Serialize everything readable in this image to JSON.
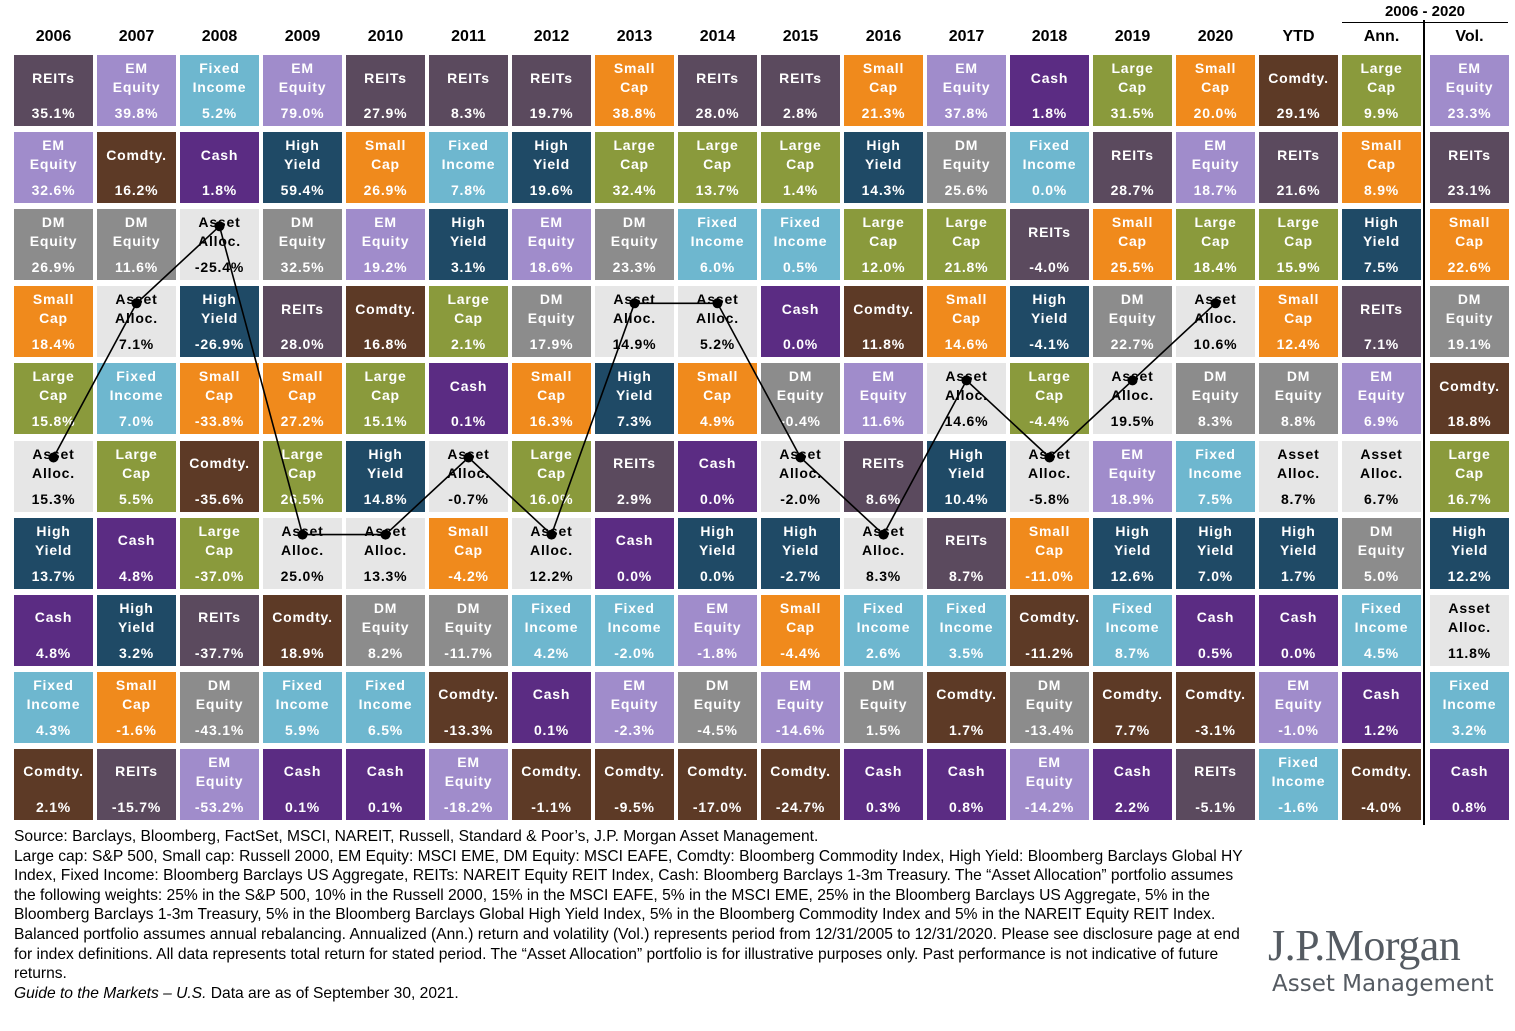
{
  "chart_data": {
    "type": "table",
    "title": "",
    "years": [
      "2006",
      "2007",
      "2008",
      "2009",
      "2010",
      "2011",
      "2012",
      "2013",
      "2014",
      "2015",
      "2016",
      "2017",
      "2018",
      "2019",
      "2020",
      "YTD"
    ],
    "summary_header": "2006 - 2020",
    "summary_columns": [
      "Ann.",
      "Vol."
    ],
    "asset_colors": {
      "REITs": "#5b4a5e",
      "EM Equity": "#a08ccb",
      "Fixed Income": "#6eb7cf",
      "Small Cap": "#f08a1c",
      "Cash": "#5b2c83",
      "Large Cap": "#8a9a3c",
      "Comdty.": "#5d3a26",
      "High Yield": "#1f4a66",
      "DM Equity": "#8c8c8c",
      "Asset Alloc.": "#e6e6e6"
    },
    "columns": [
      [
        [
          "REITs",
          "35.1%"
        ],
        [
          "EM Equity",
          "32.6%"
        ],
        [
          "DM Equity",
          "26.9%"
        ],
        [
          "Small Cap",
          "18.4%"
        ],
        [
          "Large Cap",
          "15.8%"
        ],
        [
          "Asset Alloc.",
          "15.3%"
        ],
        [
          "High Yield",
          "13.7%"
        ],
        [
          "Cash",
          "4.8%"
        ],
        [
          "Fixed Income",
          "4.3%"
        ],
        [
          "Comdty.",
          "2.1%"
        ]
      ],
      [
        [
          "EM Equity",
          "39.8%"
        ],
        [
          "Comdty.",
          "16.2%"
        ],
        [
          "DM Equity",
          "11.6%"
        ],
        [
          "Asset Alloc.",
          "7.1%"
        ],
        [
          "Fixed Income",
          "7.0%"
        ],
        [
          "Large Cap",
          "5.5%"
        ],
        [
          "Cash",
          "4.8%"
        ],
        [
          "High Yield",
          "3.2%"
        ],
        [
          "Small Cap",
          "-1.6%"
        ],
        [
          "REITs",
          "-15.7%"
        ]
      ],
      [
        [
          "Fixed Income",
          "5.2%"
        ],
        [
          "Cash",
          "1.8%"
        ],
        [
          "Asset Alloc.",
          "-25.4%"
        ],
        [
          "High Yield",
          "-26.9%"
        ],
        [
          "Small Cap",
          "-33.8%"
        ],
        [
          "Comdty.",
          "-35.6%"
        ],
        [
          "Large Cap",
          "-37.0%"
        ],
        [
          "REITs",
          "-37.7%"
        ],
        [
          "DM Equity",
          "-43.1%"
        ],
        [
          "EM Equity",
          "-53.2%"
        ]
      ],
      [
        [
          "EM Equity",
          "79.0%"
        ],
        [
          "High Yield",
          "59.4%"
        ],
        [
          "DM Equity",
          "32.5%"
        ],
        [
          "REITs",
          "28.0%"
        ],
        [
          "Small Cap",
          "27.2%"
        ],
        [
          "Large Cap",
          "26.5%"
        ],
        [
          "Asset Alloc.",
          "25.0%"
        ],
        [
          "Comdty.",
          "18.9%"
        ],
        [
          "Fixed Income",
          "5.9%"
        ],
        [
          "Cash",
          "0.1%"
        ]
      ],
      [
        [
          "REITs",
          "27.9%"
        ],
        [
          "Small Cap",
          "26.9%"
        ],
        [
          "EM Equity",
          "19.2%"
        ],
        [
          "Comdty.",
          "16.8%"
        ],
        [
          "Large Cap",
          "15.1%"
        ],
        [
          "High Yield",
          "14.8%"
        ],
        [
          "Asset Alloc.",
          "13.3%"
        ],
        [
          "DM Equity",
          "8.2%"
        ],
        [
          "Fixed Income",
          "6.5%"
        ],
        [
          "Cash",
          "0.1%"
        ]
      ],
      [
        [
          "REITs",
          "8.3%"
        ],
        [
          "Fixed Income",
          "7.8%"
        ],
        [
          "High Yield",
          "3.1%"
        ],
        [
          "Large Cap",
          "2.1%"
        ],
        [
          "Cash",
          "0.1%"
        ],
        [
          "Asset Alloc.",
          "-0.7%"
        ],
        [
          "Small Cap",
          "-4.2%"
        ],
        [
          "DM Equity",
          "-11.7%"
        ],
        [
          "Comdty.",
          "-13.3%"
        ],
        [
          "EM Equity",
          "-18.2%"
        ]
      ],
      [
        [
          "REITs",
          "19.7%"
        ],
        [
          "High Yield",
          "19.6%"
        ],
        [
          "EM Equity",
          "18.6%"
        ],
        [
          "DM Equity",
          "17.9%"
        ],
        [
          "Small Cap",
          "16.3%"
        ],
        [
          "Large Cap",
          "16.0%"
        ],
        [
          "Asset Alloc.",
          "12.2%"
        ],
        [
          "Fixed Income",
          "4.2%"
        ],
        [
          "Cash",
          "0.1%"
        ],
        [
          "Comdty.",
          "-1.1%"
        ]
      ],
      [
        [
          "Small Cap",
          "38.8%"
        ],
        [
          "Large Cap",
          "32.4%"
        ],
        [
          "DM Equity",
          "23.3%"
        ],
        [
          "Asset Alloc.",
          "14.9%"
        ],
        [
          "High Yield",
          "7.3%"
        ],
        [
          "REITs",
          "2.9%"
        ],
        [
          "Cash",
          "0.0%"
        ],
        [
          "Fixed Income",
          "-2.0%"
        ],
        [
          "EM Equity",
          "-2.3%"
        ],
        [
          "Comdty.",
          "-9.5%"
        ]
      ],
      [
        [
          "REITs",
          "28.0%"
        ],
        [
          "Large Cap",
          "13.7%"
        ],
        [
          "Fixed Income",
          "6.0%"
        ],
        [
          "Asset Alloc.",
          "5.2%"
        ],
        [
          "Small Cap",
          "4.9%"
        ],
        [
          "Cash",
          "0.0%"
        ],
        [
          "High Yield",
          "0.0%"
        ],
        [
          "EM Equity",
          "-1.8%"
        ],
        [
          "DM Equity",
          "-4.5%"
        ],
        [
          "Comdty.",
          "-17.0%"
        ]
      ],
      [
        [
          "REITs",
          "2.8%"
        ],
        [
          "Large Cap",
          "1.4%"
        ],
        [
          "Fixed Income",
          "0.5%"
        ],
        [
          "Cash",
          "0.0%"
        ],
        [
          "DM Equity",
          "-0.4%"
        ],
        [
          "Asset Alloc.",
          "-2.0%"
        ],
        [
          "High Yield",
          "-2.7%"
        ],
        [
          "Small Cap",
          "-4.4%"
        ],
        [
          "EM Equity",
          "-14.6%"
        ],
        [
          "Comdty.",
          "-24.7%"
        ]
      ],
      [
        [
          "Small Cap",
          "21.3%"
        ],
        [
          "High Yield",
          "14.3%"
        ],
        [
          "Large Cap",
          "12.0%"
        ],
        [
          "Comdty.",
          "11.8%"
        ],
        [
          "EM Equity",
          "11.6%"
        ],
        [
          "REITs",
          "8.6%"
        ],
        [
          "Asset Alloc.",
          "8.3%"
        ],
        [
          "Fixed Income",
          "2.6%"
        ],
        [
          "DM Equity",
          "1.5%"
        ],
        [
          "Cash",
          "0.3%"
        ]
      ],
      [
        [
          "EM Equity",
          "37.8%"
        ],
        [
          "DM Equity",
          "25.6%"
        ],
        [
          "Large Cap",
          "21.8%"
        ],
        [
          "Small Cap",
          "14.6%"
        ],
        [
          "Asset Alloc.",
          "14.6%"
        ],
        [
          "High Yield",
          "10.4%"
        ],
        [
          "REITs",
          "8.7%"
        ],
        [
          "Fixed Income",
          "3.5%"
        ],
        [
          "Comdty.",
          "1.7%"
        ],
        [
          "Cash",
          "0.8%"
        ]
      ],
      [
        [
          "Cash",
          "1.8%"
        ],
        [
          "Fixed Income",
          "0.0%"
        ],
        [
          "REITs",
          "-4.0%"
        ],
        [
          "High Yield",
          "-4.1%"
        ],
        [
          "Large Cap",
          "-4.4%"
        ],
        [
          "Asset Alloc.",
          "-5.8%"
        ],
        [
          "Small Cap",
          "-11.0%"
        ],
        [
          "Comdty.",
          "-11.2%"
        ],
        [
          "DM Equity",
          "-13.4%"
        ],
        [
          "EM Equity",
          "-14.2%"
        ]
      ],
      [
        [
          "Large Cap",
          "31.5%"
        ],
        [
          "REITs",
          "28.7%"
        ],
        [
          "Small Cap",
          "25.5%"
        ],
        [
          "DM Equity",
          "22.7%"
        ],
        [
          "Asset Alloc.",
          "19.5%"
        ],
        [
          "EM Equity",
          "18.9%"
        ],
        [
          "High Yield",
          "12.6%"
        ],
        [
          "Fixed Income",
          "8.7%"
        ],
        [
          "Comdty.",
          "7.7%"
        ],
        [
          "Cash",
          "2.2%"
        ]
      ],
      [
        [
          "Small Cap",
          "20.0%"
        ],
        [
          "EM Equity",
          "18.7%"
        ],
        [
          "Large Cap",
          "18.4%"
        ],
        [
          "Asset Alloc.",
          "10.6%"
        ],
        [
          "DM Equity",
          "8.3%"
        ],
        [
          "Fixed Income",
          "7.5%"
        ],
        [
          "High Yield",
          "7.0%"
        ],
        [
          "Cash",
          "0.5%"
        ],
        [
          "Comdty.",
          "-3.1%"
        ],
        [
          "REITs",
          "-5.1%"
        ]
      ],
      [
        [
          "Comdty.",
          "29.1%"
        ],
        [
          "REITs",
          "21.6%"
        ],
        [
          "Large Cap",
          "15.9%"
        ],
        [
          "Small Cap",
          "12.4%"
        ],
        [
          "DM Equity",
          "8.8%"
        ],
        [
          "Asset Alloc.",
          "8.7%"
        ],
        [
          "High Yield",
          "1.7%"
        ],
        [
          "Cash",
          "0.0%"
        ],
        [
          "EM Equity",
          "-1.0%"
        ],
        [
          "Fixed Income",
          "-1.6%"
        ]
      ]
    ],
    "annualized": [
      [
        "Large Cap",
        "9.9%"
      ],
      [
        "Small Cap",
        "8.9%"
      ],
      [
        "High Yield",
        "7.5%"
      ],
      [
        "REITs",
        "7.1%"
      ],
      [
        "EM Equity",
        "6.9%"
      ],
      [
        "Asset Alloc.",
        "6.7%"
      ],
      [
        "DM Equity",
        "5.0%"
      ],
      [
        "Fixed Income",
        "4.5%"
      ],
      [
        "Cash",
        "1.2%"
      ],
      [
        "Comdty.",
        "-4.0%"
      ]
    ],
    "volatility": [
      [
        "EM Equity",
        "23.3%"
      ],
      [
        "REITs",
        "23.1%"
      ],
      [
        "Small Cap",
        "22.6%"
      ],
      [
        "DM Equity",
        "19.1%"
      ],
      [
        "Comdty.",
        "18.8%"
      ],
      [
        "Large Cap",
        "16.7%"
      ],
      [
        "High Yield",
        "12.2%"
      ],
      [
        "Asset Alloc.",
        "11.8%"
      ],
      [
        "Fixed Income",
        "3.2%"
      ],
      [
        "Cash",
        "0.8%"
      ]
    ],
    "asset_alloc_line": {
      "color": "#000000",
      "series_asset": "Asset Alloc."
    }
  },
  "footnote": {
    "source": "Source: Barclays, Bloomberg, FactSet, MSCI, NAREIT, Russell, Standard & Poor’s, J.P. Morgan Asset Management.",
    "body": "Large cap: S&P 500, Small cap: Russell 2000, EM Equity: MSCI EME, DM Equity: MSCI EAFE, Comdty: Bloomberg Commodity Index, High Yield: Bloomberg Barclays Global HY Index, Fixed Income: Bloomberg Barclays US Aggregate, REITs: NAREIT Equity REIT Index, Cash: Bloomberg Barclays 1-3m Treasury. The “Asset Allocation” portfolio assumes the following weights: 25% in the S&P 500, 10% in the Russell 2000, 15% in the MSCI EAFE, 5% in the MSCI EME, 25% in the Bloomberg Barclays US Aggregate, 5% in the Bloomberg Barclays 1-3m Treasury, 5% in the Bloomberg Barclays Global High Yield Index, 5% in the Bloomberg Commodity Index and 5% in the NAREIT Equity REIT Index. Balanced portfolio assumes annual rebalancing. Annualized (Ann.) return and volatility (Vol.) represents period from 12/31/2005 to 12/31/2020. Please see disclosure page at end for index definitions. All data represents total return for stated period. The “Asset Allocation” portfolio is for illustrative purposes only. Past performance is not indicative of future returns.",
    "guide_italic": "Guide to the Markets – U.S.",
    "guide_rest": " Data are as of September 30, 2021."
  },
  "logo": {
    "line1": "J.P.Morgan",
    "line2": "Asset Management"
  }
}
